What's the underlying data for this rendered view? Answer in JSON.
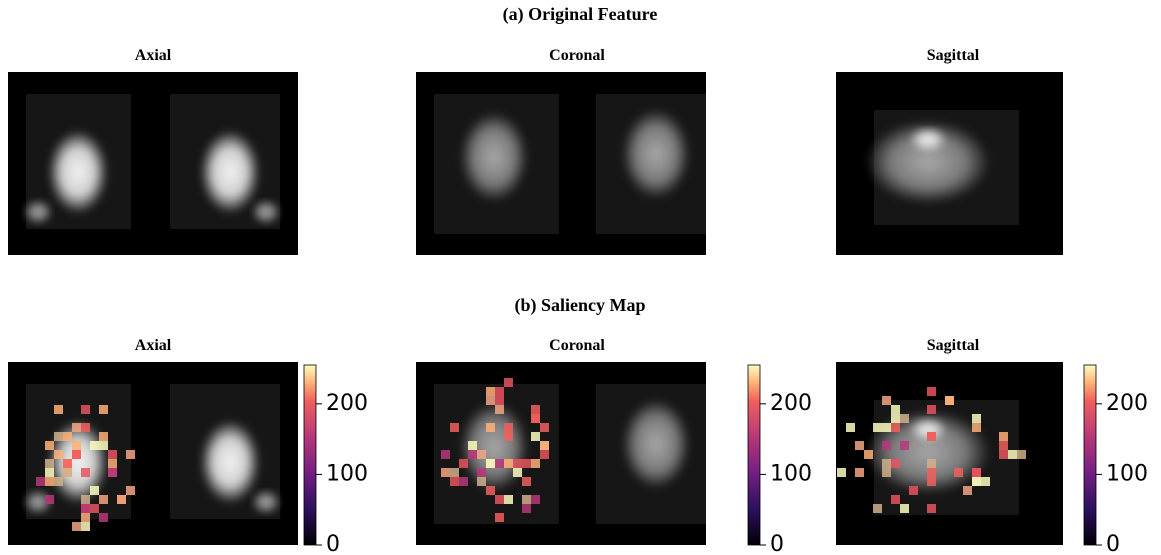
{
  "rows": [
    {
      "title": "(a) Original Feature",
      "panels": [
        {
          "title": "Axial"
        },
        {
          "title": "Coronal"
        },
        {
          "title": "Sagittal"
        }
      ]
    },
    {
      "title": "(b) Saliency Map",
      "panels": [
        {
          "title": "Axial",
          "colorbar": {
            "lim": [
              0,
              255
            ],
            "ticks": [
              0,
              100,
              200
            ]
          }
        },
        {
          "title": "Coronal",
          "colorbar": {
            "lim": [
              0,
              255
            ],
            "ticks": [
              0,
              100,
              200
            ]
          }
        },
        {
          "title": "Sagittal",
          "colorbar": {
            "lim": [
              0,
              255
            ],
            "ticks": [
              0,
              100,
              200
            ]
          }
        }
      ]
    }
  ]
}
